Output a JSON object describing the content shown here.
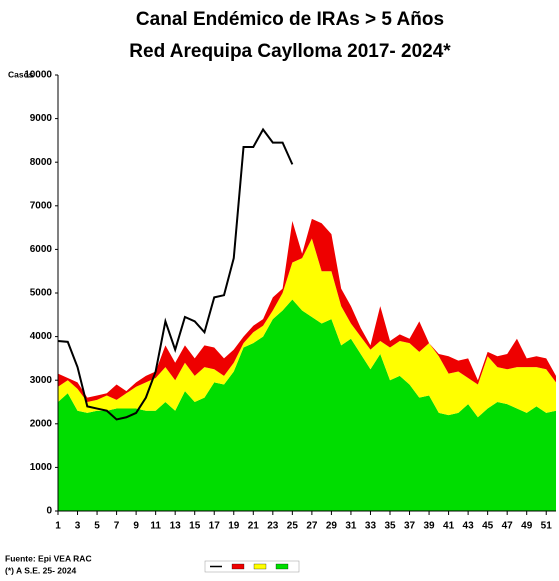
{
  "chart_data": {
    "type": "stacked-area-line",
    "title": "Canal Endémico de IRAs > 5 Años",
    "subtitle": "Red Arequipa Caylloma 2017- 2024*",
    "y_label": "Casos",
    "source": "Fuente: Epi VEA RAC",
    "note": "(*) A S.E. 25- 2024",
    "x": [
      1,
      2,
      3,
      4,
      5,
      6,
      7,
      8,
      9,
      10,
      11,
      12,
      13,
      14,
      15,
      16,
      17,
      18,
      19,
      20,
      21,
      22,
      23,
      24,
      25,
      26,
      27,
      28,
      29,
      30,
      31,
      32,
      33,
      34,
      35,
      36,
      37,
      38,
      39,
      40,
      41,
      42,
      43,
      44,
      45,
      46,
      47,
      48,
      49,
      50,
      51,
      52
    ],
    "xlim": [
      1,
      52
    ],
    "xticks": [
      1,
      3,
      5,
      7,
      9,
      11,
      13,
      15,
      17,
      19,
      21,
      23,
      25,
      27,
      29,
      31,
      33,
      35,
      37,
      39,
      41,
      43,
      45,
      47,
      49,
      51
    ],
    "ylim": [
      0,
      10000
    ],
    "yticks": [
      0,
      1000,
      2000,
      3000,
      4000,
      5000,
      6000,
      7000,
      8000,
      9000,
      10000
    ],
    "series": [
      {
        "kind": "area",
        "color": "#00dd00",
        "values": [
          2500,
          2700,
          2300,
          2250,
          2300,
          2300,
          2350,
          2350,
          2350,
          2300,
          2300,
          2500,
          2300,
          2750,
          2500,
          2600,
          2950,
          2900,
          3200,
          3750,
          3850,
          4000,
          4400,
          4600,
          4850,
          4600,
          4450,
          4300,
          4400,
          3800,
          3950,
          3600,
          3250,
          3600,
          3000,
          3100,
          2900,
          2600,
          2650,
          2250,
          2200,
          2250,
          2450,
          2150,
          2350,
          2500,
          2450,
          2350,
          2250,
          2400,
          2250,
          2300
        ]
      },
      {
        "kind": "area",
        "color": "#ffff00",
        "values": [
          350,
          300,
          500,
          250,
          250,
          350,
          200,
          350,
          500,
          650,
          750,
          800,
          700,
          650,
          600,
          700,
          300,
          200,
          200,
          100,
          250,
          250,
          200,
          400,
          850,
          1200,
          1800,
          1200,
          1100,
          900,
          350,
          400,
          450,
          300,
          750,
          800,
          950,
          1050,
          1200,
          1300,
          950,
          950,
          600,
          750,
          1200,
          800,
          800,
          950,
          1050,
          900,
          1000,
          650
        ]
      },
      {
        "kind": "area",
        "color": "#ee0000",
        "values": [
          300,
          50,
          150,
          100,
          100,
          50,
          350,
          50,
          100,
          150,
          150,
          500,
          400,
          400,
          400,
          500,
          500,
          400,
          300,
          150,
          150,
          150,
          300,
          100,
          950,
          100,
          450,
          1100,
          850,
          400,
          400,
          200,
          100,
          800,
          150,
          150,
          100,
          700,
          0,
          50,
          400,
          250,
          450,
          100,
          100,
          250,
          350,
          650,
          200,
          250,
          250,
          150
        ]
      },
      {
        "kind": "line",
        "color": "#000000",
        "values": [
          3900,
          3880,
          3300,
          2400,
          2350,
          2300,
          2100,
          2150,
          2250,
          2600,
          3200,
          4350,
          3700,
          4450,
          4350,
          4100,
          4900,
          4950,
          5800,
          8350,
          8350,
          8750,
          8450,
          8450,
          7950,
          null,
          null,
          null,
          null,
          null,
          null,
          null,
          null,
          null,
          null,
          null,
          null,
          null,
          null,
          null,
          null,
          null,
          null,
          null,
          null,
          null,
          null,
          null,
          null,
          null,
          null,
          null
        ]
      }
    ]
  }
}
